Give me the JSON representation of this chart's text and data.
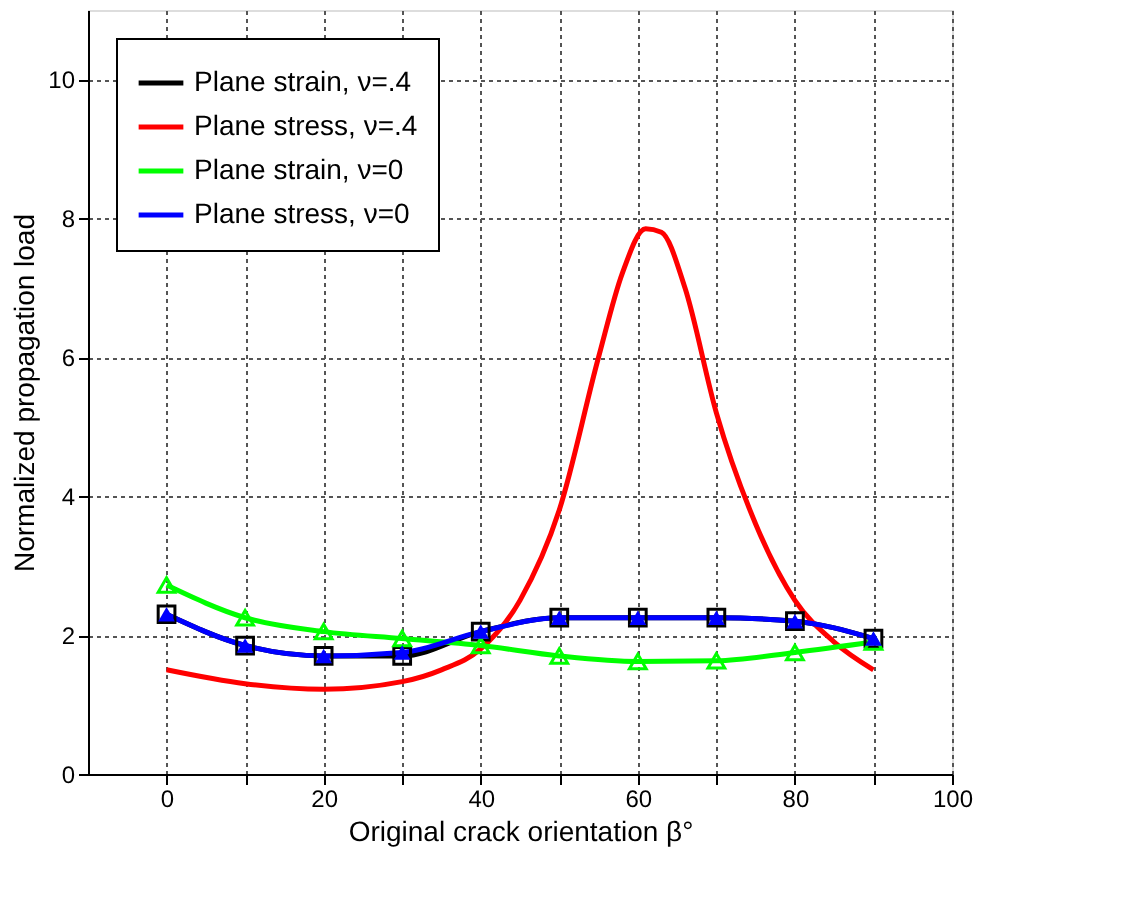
{
  "chart_data": {
    "type": "line",
    "xlabel": "Original crack orientation β°",
    "ylabel": "Normalized propagation load",
    "x": [
      0,
      10,
      20,
      30,
      40,
      50,
      60,
      70,
      80,
      90
    ],
    "series": [
      {
        "name": "Plane strain, ν=.4",
        "color": "#000000",
        "marker": "square",
        "values": [
          2.3,
          1.85,
          1.7,
          1.7,
          2.05,
          2.25,
          2.25,
          2.25,
          2.2,
          1.95
        ]
      },
      {
        "name": "Plane stress, ν=.4",
        "color": "#ff0000",
        "marker": "none",
        "x": [
          0,
          10,
          20,
          30,
          35,
          40,
          45,
          50,
          55,
          58,
          61,
          63,
          66,
          70,
          75,
          80,
          85,
          90
        ],
        "values": [
          1.5,
          1.3,
          1.22,
          1.33,
          1.5,
          1.8,
          2.5,
          3.8,
          6.0,
          7.2,
          7.85,
          7.8,
          7.0,
          5.2,
          3.6,
          2.5,
          1.9,
          1.5
        ]
      },
      {
        "name": "Plane strain, ν=0",
        "color": "#00ff00",
        "marker": "triangle",
        "values": [
          2.72,
          2.25,
          2.05,
          1.95,
          1.85,
          1.7,
          1.62,
          1.63,
          1.75,
          1.9
        ]
      },
      {
        "name": "Plane stress, ν=0",
        "color": "#0000ff",
        "marker": "triangle",
        "values": [
          2.3,
          1.85,
          1.7,
          1.75,
          2.05,
          2.25,
          2.25,
          2.25,
          2.2,
          1.95
        ]
      }
    ],
    "xlim": [
      -10,
      100
    ],
    "xticks": [
      0,
      {
        "value": 10,
        "label": null
      },
      20,
      {
        "value": 30,
        "label": null
      },
      40,
      {
        "value": 50,
        "label": null
      },
      60,
      {
        "value": 70,
        "label": null
      },
      80,
      {
        "value": 90,
        "label": null
      },
      100
    ],
    "ylim": [
      0,
      11
    ],
    "yticks": [
      0,
      2,
      4,
      6,
      8,
      10
    ],
    "grid": true,
    "legend": "top left",
    "line_style": "solid"
  }
}
